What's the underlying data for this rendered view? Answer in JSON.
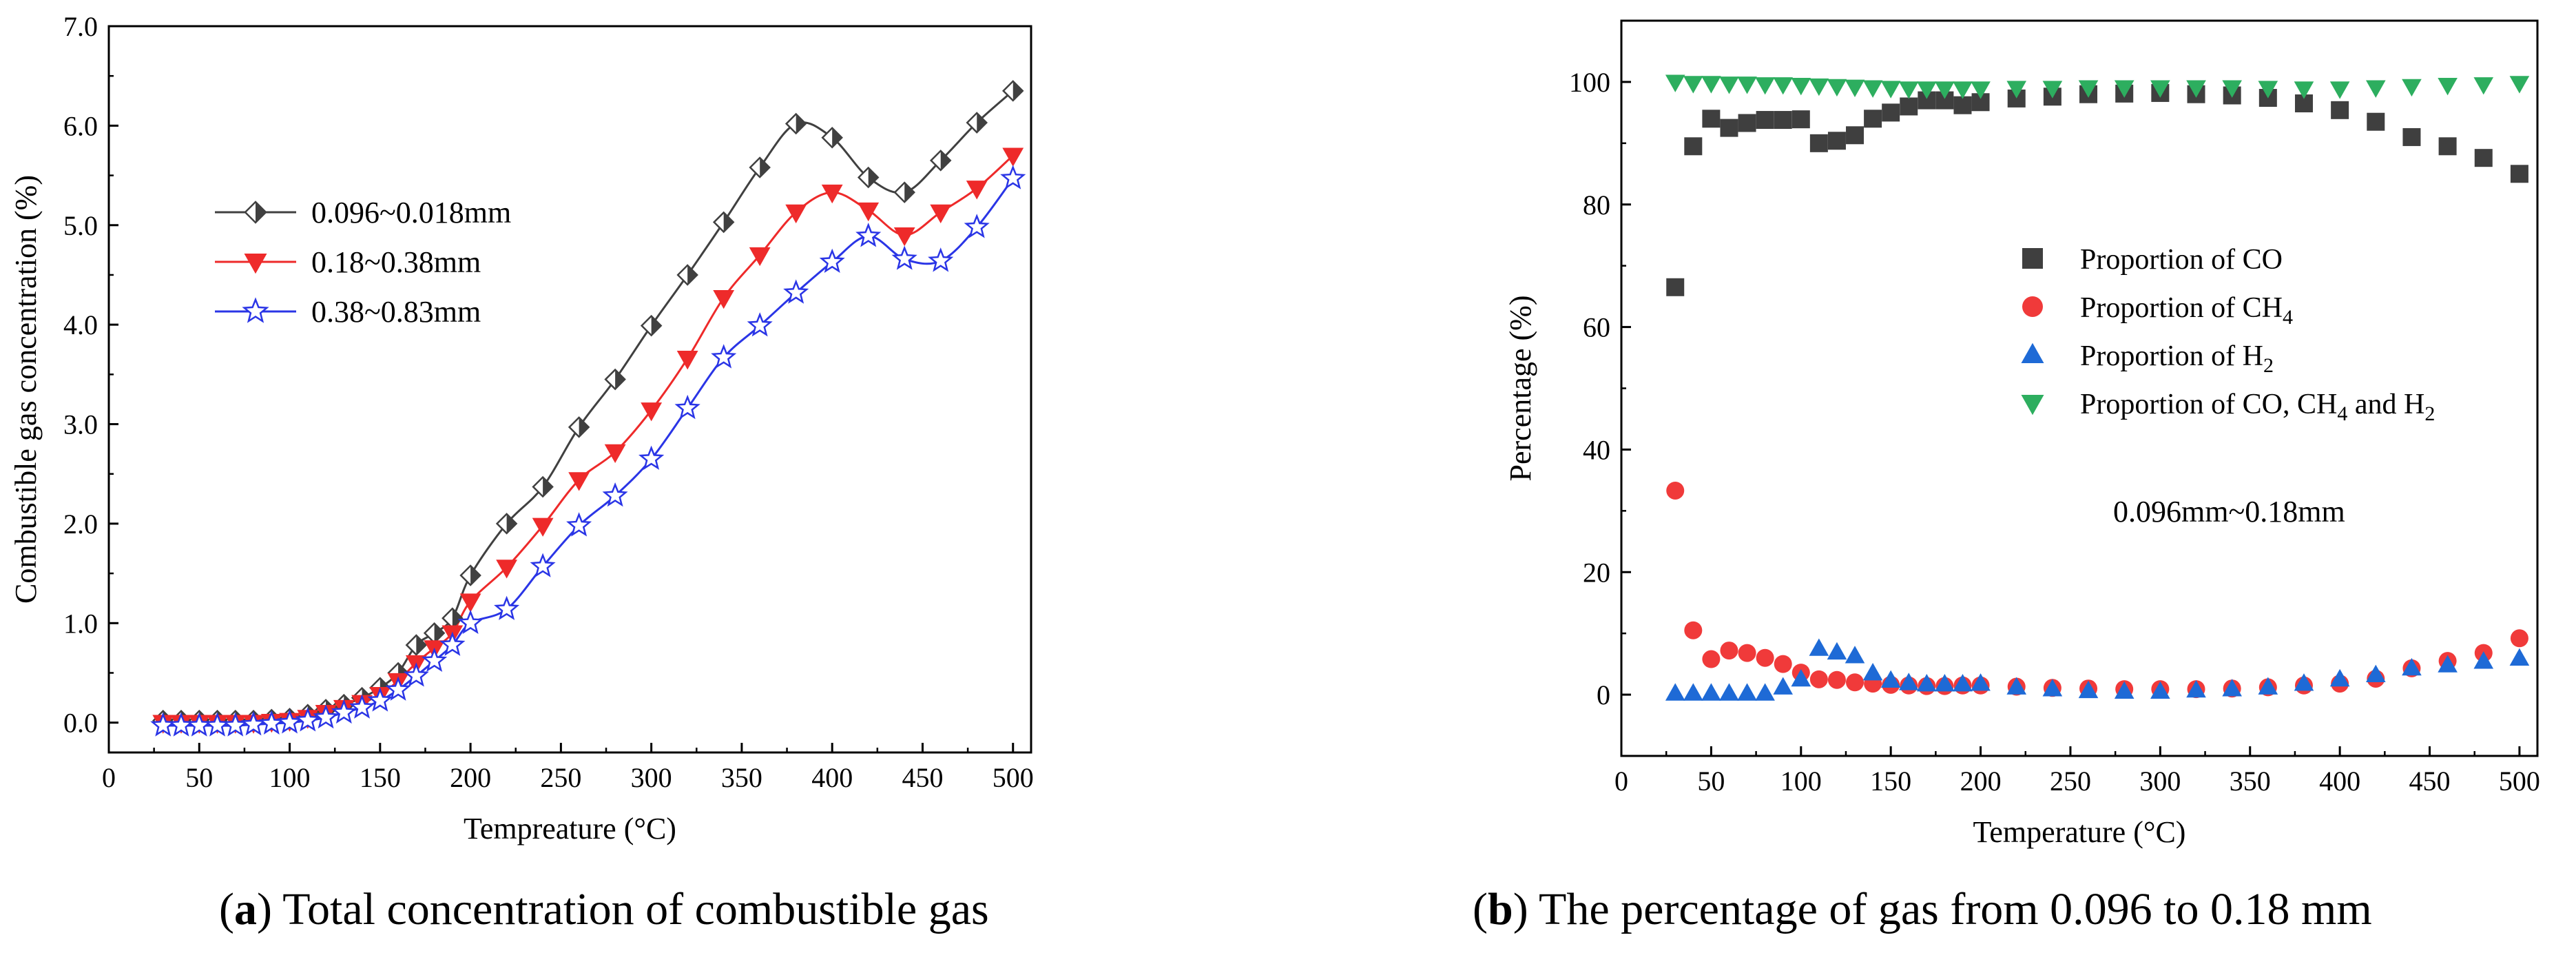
{
  "chart_data": [
    {
      "type": "line",
      "panel": "a",
      "xlabel": "Tempreature (°C)",
      "ylabel": "Combustible gas concentration (%)",
      "xlim": [
        0,
        510
      ],
      "ylim": [
        -0.3,
        7.0
      ],
      "xticks": [
        0,
        50,
        100,
        150,
        200,
        250,
        300,
        350,
        400,
        450,
        500
      ],
      "yticks": [
        0.0,
        1.0,
        2.0,
        3.0,
        4.0,
        5.0,
        6.0,
        7.0
      ],
      "yticklabels": [
        "0.0",
        "1.0",
        "2.0",
        "3.0",
        "4.0",
        "5.0",
        "6.0",
        "7.0"
      ],
      "legend_position": "upper-left",
      "x": [
        30,
        40,
        50,
        60,
        70,
        80,
        90,
        100,
        110,
        120,
        130,
        140,
        150,
        160,
        170,
        180,
        190,
        200,
        220,
        240,
        260,
        280,
        300,
        320,
        340,
        360,
        380,
        400,
        420,
        440,
        460,
        480,
        500
      ],
      "series": [
        {
          "name": "0.096~0.018mm",
          "color": "#404040",
          "marker": "diamond",
          "values": [
            0.02,
            0.02,
            0.02,
            0.02,
            0.02,
            0.02,
            0.03,
            0.04,
            0.08,
            0.13,
            0.18,
            0.25,
            0.35,
            0.5,
            0.78,
            0.9,
            1.05,
            1.48,
            2.0,
            2.37,
            2.97,
            3.45,
            3.99,
            4.5,
            5.03,
            5.58,
            6.02,
            5.88,
            5.48,
            5.33,
            5.65,
            6.03,
            6.35
          ]
        },
        {
          "name": "0.18~0.38mm",
          "color": "#ee2a2a",
          "marker": "triangle-down",
          "values": [
            0.0,
            0.0,
            0.0,
            0.0,
            0.0,
            0.0,
            0.01,
            0.02,
            0.05,
            0.1,
            0.15,
            0.2,
            0.28,
            0.42,
            0.6,
            0.75,
            0.9,
            1.22,
            1.56,
            1.98,
            2.44,
            2.72,
            3.14,
            3.66,
            4.27,
            4.7,
            5.13,
            5.33,
            5.15,
            4.9,
            5.13,
            5.37,
            5.7
          ]
        },
        {
          "name": "0.38~0.83mm",
          "color": "#2a35e6",
          "marker": "star",
          "values": [
            -0.03,
            -0.03,
            -0.03,
            -0.03,
            -0.03,
            -0.02,
            -0.01,
            0.0,
            0.02,
            0.05,
            0.1,
            0.15,
            0.22,
            0.33,
            0.47,
            0.62,
            0.78,
            1.0,
            1.14,
            1.57,
            1.98,
            2.28,
            2.65,
            3.16,
            3.67,
            3.99,
            4.32,
            4.63,
            4.89,
            4.66,
            4.64,
            4.98,
            5.47
          ]
        }
      ]
    },
    {
      "type": "scatter",
      "panel": "b",
      "xlabel": "Temperature (°C)",
      "ylabel": "Percentage (%)",
      "xlim": [
        0,
        510
      ],
      "ylim": [
        -10,
        110
      ],
      "xticks": [
        0,
        50,
        100,
        150,
        200,
        250,
        300,
        350,
        400,
        450,
        500
      ],
      "yticks": [
        0,
        20,
        40,
        60,
        80,
        100
      ],
      "yticklabels": [
        "0",
        "20",
        "40",
        "60",
        "80",
        "100"
      ],
      "legend_position": "center-right",
      "annotation": "0.096mm~0.18mm",
      "x": [
        30,
        40,
        50,
        60,
        70,
        80,
        90,
        100,
        110,
        120,
        130,
        140,
        150,
        160,
        170,
        180,
        190,
        200,
        220,
        240,
        260,
        280,
        300,
        320,
        340,
        360,
        380,
        400,
        420,
        440,
        460,
        480,
        500
      ],
      "series": [
        {
          "name": "Proportion of CO",
          "legend_text": [
            "Proportion of CO"
          ],
          "color": "#3f3f3f",
          "marker": "square",
          "values": [
            66.5,
            89.5,
            94,
            92.5,
            93.3,
            93.8,
            93.8,
            93.9,
            90,
            90.4,
            91.3,
            94,
            95,
            96,
            97,
            97,
            96.2,
            96.7,
            97.3,
            97.6,
            98,
            98.1,
            98.2,
            98,
            97.8,
            97.4,
            96.5,
            95.4,
            93.5,
            91,
            89.5,
            87.6,
            85
          ]
        },
        {
          "name": "Proportion of CH4",
          "legend_text": [
            "Proportion of CH",
            "4"
          ],
          "color": "#f03a3a",
          "marker": "circle",
          "values": [
            33.3,
            10.5,
            5.8,
            7.2,
            6.8,
            6,
            5,
            3.6,
            2.5,
            2.4,
            2,
            1.8,
            1.6,
            1.5,
            1.4,
            1.4,
            1.5,
            1.5,
            1.3,
            1.1,
            1.0,
            0.9,
            0.9,
            0.9,
            1.0,
            1.2,
            1.5,
            1.8,
            2.6,
            4.3,
            5.5,
            6.8,
            9.2
          ]
        },
        {
          "name": "Proportion of H2",
          "legend_text": [
            "Proportion of H",
            "2"
          ],
          "color": "#1e6ad6",
          "marker": "triangle-up",
          "values": [
            0.2,
            0.2,
            0.2,
            0.2,
            0.2,
            0.2,
            1.2,
            2.5,
            7.5,
            6.9,
            6.3,
            3.5,
            2.3,
            1.9,
            1.7,
            1.7,
            1.7,
            1.8,
            1.2,
            0.9,
            0.6,
            0.5,
            0.5,
            0.7,
            0.9,
            1.2,
            1.8,
            2.5,
            3.2,
            4.3,
            4.8,
            5.4,
            5.9
          ]
        },
        {
          "name": "Proportion of CO, CH4 and H2",
          "legend_text": [
            "Proportion of CO, CH",
            "4",
            " and H",
            "2"
          ],
          "color": "#2dae5f",
          "marker": "triangle-down",
          "values": [
            100,
            99.8,
            99.8,
            99.7,
            99.7,
            99.6,
            99.6,
            99.5,
            99.4,
            99.3,
            99.2,
            99.1,
            99.0,
            98.9,
            98.9,
            98.9,
            98.9,
            98.9,
            99.0,
            99.0,
            99.1,
            99.1,
            99.1,
            99.1,
            99.1,
            99.0,
            98.9,
            98.9,
            99.1,
            99.3,
            99.5,
            99.6,
            99.8
          ]
        }
      ]
    }
  ],
  "captions": {
    "a": {
      "label": "a",
      "text": "Total concentration of combustible gas"
    },
    "b": {
      "label": "b",
      "text": "The percentage of gas from 0.096 to 0.18 mm"
    }
  }
}
